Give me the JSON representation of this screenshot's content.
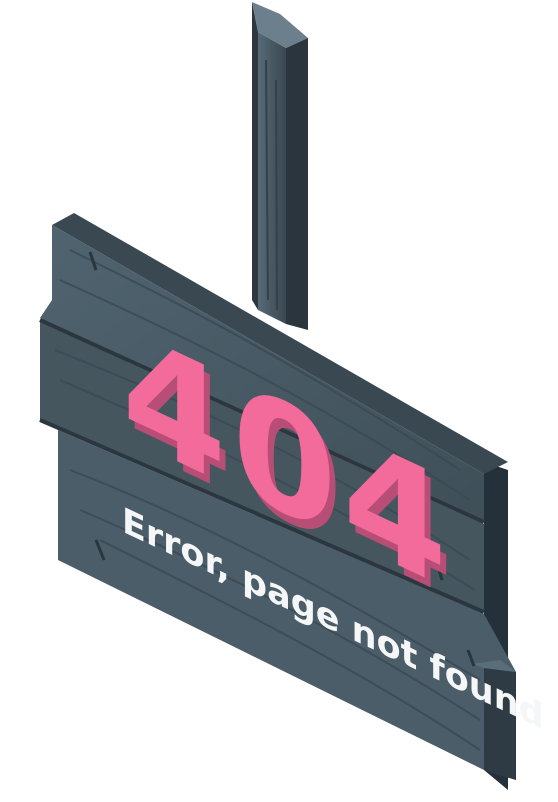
{
  "error_code": "404",
  "message": "Error, page not found",
  "colors": {
    "accent": "#f26b9a",
    "accent_shadow": "#b84e76",
    "wood_top": "#4c5f6b",
    "wood_mid": "#45565f",
    "wood_dark": "#2f3a41",
    "wood_edge": "#24303a",
    "text_light": "#f4f6f7"
  }
}
